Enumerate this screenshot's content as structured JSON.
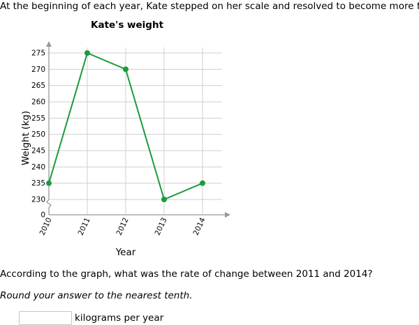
{
  "intro_text": "At the beginning of each year, Kate stepped on her scale and resolved to become more fit.",
  "question_text": "According to the graph, what was the rate of change between 2011 and 2014?",
  "instruction_text": "Round your answer to the nearest tenth.",
  "answer": {
    "value": "",
    "unit_label": "kilograms per year"
  },
  "colors": {
    "line": "#1b9a3e",
    "grid": "#cfcfcf",
    "axis": "#999999"
  },
  "chart_data": {
    "type": "line",
    "title": "Kate's weight",
    "xlabel": "Year",
    "ylabel": "Weight (kg)",
    "x": [
      "2010",
      "2011",
      "2012",
      "2013",
      "2014"
    ],
    "series": [
      {
        "values": [
          235,
          275,
          270,
          230,
          235
        ]
      }
    ],
    "yticks": [
      230,
      235,
      240,
      245,
      250,
      255,
      260,
      265,
      270,
      275
    ],
    "ylim": [
      230,
      275
    ],
    "y_axis_break": true,
    "y_origin_label": "0",
    "grid": true
  }
}
